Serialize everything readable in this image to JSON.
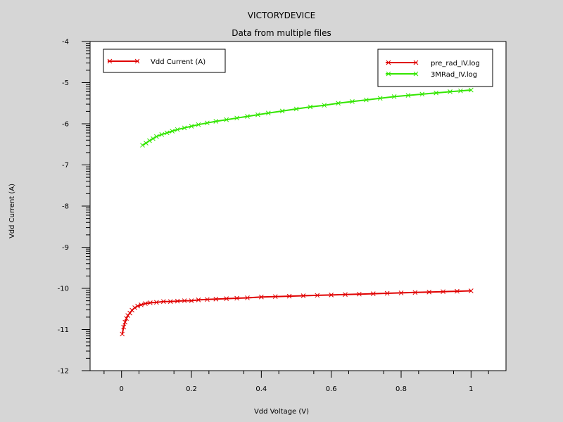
{
  "chart_data": {
    "type": "line",
    "title": "VICTORYDEVICE",
    "subtitle": "Data from multiple files",
    "xlabel": "Vdd Voltage (V)",
    "ylabel": "Vdd Current (A)",
    "xlim": [
      -0.09,
      1.1
    ],
    "ylim": [
      -12,
      -4
    ],
    "xticks": [
      "0",
      "0.2",
      "0.4",
      "0.6",
      "0.8",
      "1"
    ],
    "xtick_values": [
      0,
      0.2,
      0.4,
      0.6,
      0.8,
      1
    ],
    "yticks": [
      "-4",
      "-5",
      "-6",
      "-7",
      "-8",
      "-9",
      "-10",
      "-11",
      "-12"
    ],
    "ytick_values": [
      -4,
      -5,
      -6,
      -7,
      -8,
      -9,
      -10,
      -11,
      -12
    ],
    "y_minor_ticks_per_major": 10,
    "grid": false,
    "marker": "x",
    "legend_variable": {
      "label": "Vdd Current (A)",
      "color": "#e00000",
      "placement": "top-left"
    },
    "legend_placement": "top-right",
    "series": [
      {
        "name": "pre_rad_IV.log",
        "color": "#e00000",
        "x": [
          0.002,
          0.006,
          0.01,
          0.014,
          0.018,
          0.024,
          0.03,
          0.038,
          0.046,
          0.056,
          0.068,
          0.082,
          0.1,
          0.12,
          0.14,
          0.16,
          0.18,
          0.2,
          0.22,
          0.245,
          0.27,
          0.3,
          0.33,
          0.36,
          0.4,
          0.44,
          0.48,
          0.52,
          0.56,
          0.6,
          0.64,
          0.68,
          0.72,
          0.76,
          0.8,
          0.84,
          0.88,
          0.92,
          0.96,
          1.0
        ],
        "y": [
          -11.11,
          -10.94,
          -10.82,
          -10.73,
          -10.66,
          -10.6,
          -10.53,
          -10.47,
          -10.43,
          -10.4,
          -10.37,
          -10.35,
          -10.34,
          -10.32,
          -10.32,
          -10.31,
          -10.3,
          -10.3,
          -10.28,
          -10.27,
          -10.26,
          -10.25,
          -10.24,
          -10.23,
          -10.21,
          -10.2,
          -10.19,
          -10.18,
          -10.17,
          -10.16,
          -10.15,
          -10.14,
          -10.13,
          -10.12,
          -10.11,
          -10.1,
          -10.09,
          -10.08,
          -10.07,
          -10.06
        ]
      },
      {
        "name": "3MRad_IV.log",
        "color": "#33e600",
        "x": [
          0.06,
          0.07,
          0.08,
          0.09,
          0.1,
          0.115,
          0.13,
          0.145,
          0.16,
          0.18,
          0.2,
          0.22,
          0.245,
          0.27,
          0.3,
          0.33,
          0.36,
          0.39,
          0.42,
          0.46,
          0.5,
          0.54,
          0.58,
          0.62,
          0.66,
          0.7,
          0.74,
          0.78,
          0.82,
          0.86,
          0.9,
          0.94,
          0.97,
          1.0
        ],
        "y": [
          -6.52,
          -6.47,
          -6.41,
          -6.36,
          -6.31,
          -6.26,
          -6.22,
          -6.18,
          -6.14,
          -6.1,
          -6.06,
          -6.02,
          -5.98,
          -5.94,
          -5.9,
          -5.86,
          -5.82,
          -5.78,
          -5.74,
          -5.69,
          -5.64,
          -5.59,
          -5.55,
          -5.5,
          -5.46,
          -5.42,
          -5.38,
          -5.34,
          -5.31,
          -5.28,
          -5.25,
          -5.22,
          -5.2,
          -5.18
        ]
      }
    ]
  }
}
